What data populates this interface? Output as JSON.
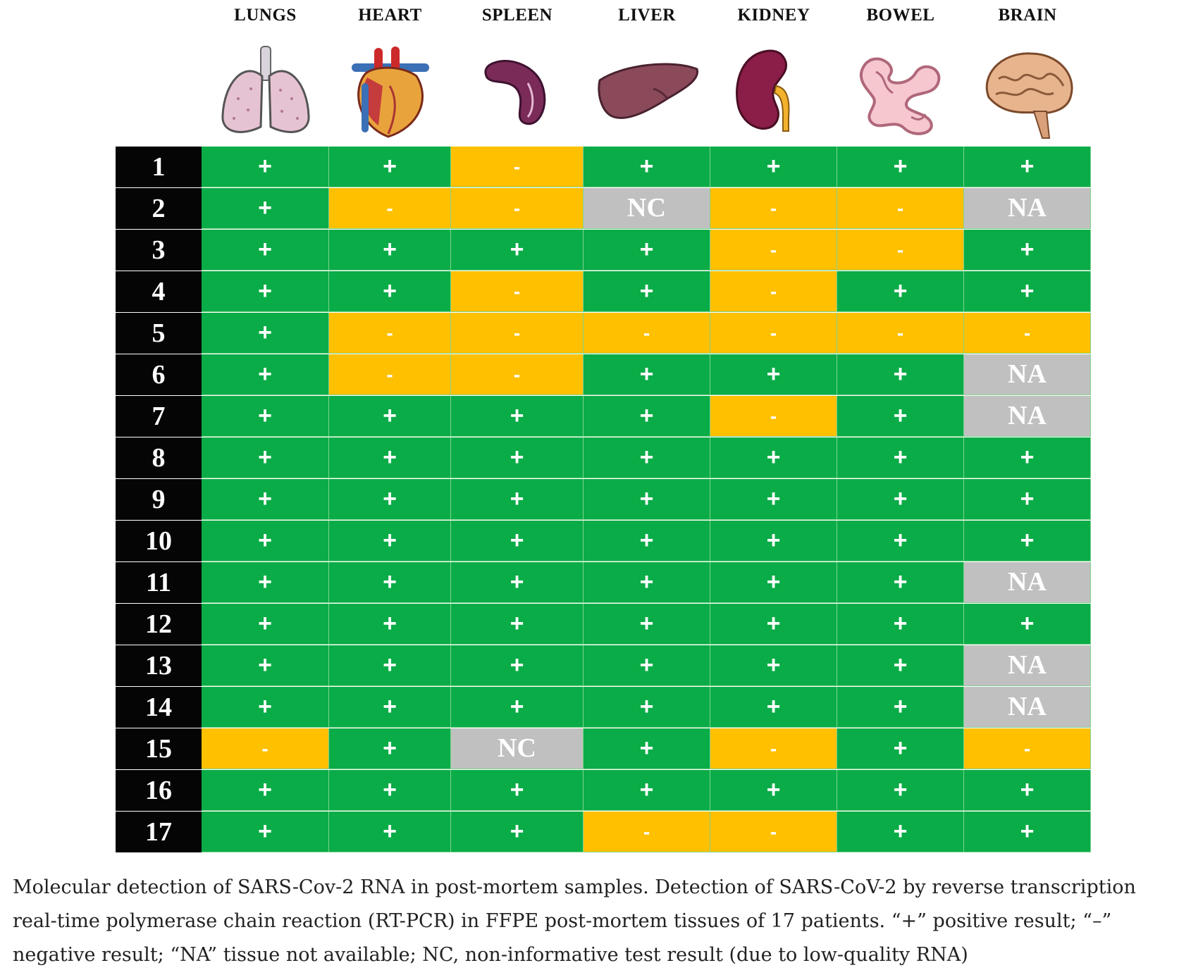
{
  "colors": {
    "positive": "#0aac47",
    "negative": "#ffc000",
    "unavailable": "#c0c0c0",
    "label_bg": "#050505"
  },
  "chart_data": {
    "type": "table",
    "columns": [
      "LUNGS",
      "HEART",
      "SPLEEN",
      "LIVER",
      "KIDNEY",
      "BOWEL",
      "BRAIN"
    ],
    "column_icons": [
      "lungs-icon",
      "heart-icon",
      "spleen-icon",
      "liver-icon",
      "kidney-icon",
      "bowel-icon",
      "brain-icon"
    ],
    "rows": [
      {
        "label": "1",
        "values": [
          "+",
          "+",
          "-",
          "+",
          "+",
          "+",
          "+"
        ]
      },
      {
        "label": "2",
        "values": [
          "+",
          "-",
          "-",
          "NC",
          "-",
          "-",
          "NA"
        ]
      },
      {
        "label": "3",
        "values": [
          "+",
          "+",
          "+",
          "+",
          "-",
          "-",
          "+"
        ]
      },
      {
        "label": "4",
        "values": [
          "+",
          "+",
          "-",
          "+",
          "-",
          "+",
          "+"
        ]
      },
      {
        "label": "5",
        "values": [
          "+",
          "-",
          "-",
          "-",
          "-",
          "-",
          "-"
        ]
      },
      {
        "label": "6",
        "values": [
          "+",
          "-",
          "-",
          "+",
          "+",
          "+",
          "NA"
        ]
      },
      {
        "label": "7",
        "values": [
          "+",
          "+",
          "+",
          "+",
          "-",
          "+",
          "NA"
        ]
      },
      {
        "label": "8",
        "values": [
          "+",
          "+",
          "+",
          "+",
          "+",
          "+",
          "+"
        ]
      },
      {
        "label": "9",
        "values": [
          "+",
          "+",
          "+",
          "+",
          "+",
          "+",
          "+"
        ]
      },
      {
        "label": "10",
        "values": [
          "+",
          "+",
          "+",
          "+",
          "+",
          "+",
          "+"
        ]
      },
      {
        "label": "11",
        "values": [
          "+",
          "+",
          "+",
          "+",
          "+",
          "+",
          "NA"
        ]
      },
      {
        "label": "12",
        "values": [
          "+",
          "+",
          "+",
          "+",
          "+",
          "+",
          "+"
        ]
      },
      {
        "label": "13",
        "values": [
          "+",
          "+",
          "+",
          "+",
          "+",
          "+",
          "NA"
        ]
      },
      {
        "label": "14",
        "values": [
          "+",
          "+",
          "+",
          "+",
          "+",
          "+",
          "NA"
        ]
      },
      {
        "label": "15",
        "values": [
          "-",
          "+",
          "NC",
          "+",
          "-",
          "+",
          "-"
        ]
      },
      {
        "label": "16",
        "values": [
          "+",
          "+",
          "+",
          "+",
          "+",
          "+",
          "+"
        ]
      },
      {
        "label": "17",
        "values": [
          "+",
          "+",
          "+",
          "-",
          "-",
          "+",
          "+"
        ]
      }
    ]
  },
  "caption": "Molecular detection of SARS-Cov-2 RNA in post-mortem samples. Detection of SARS-CoV-2 by reverse transcription real-time polymerase chain reaction (RT-PCR) in FFPE post-mortem tissues of 17 patients. “+” positive result; “–” negative result; “NA” tissue not available; NC, non-informative test result (due to low-quality RNA)"
}
